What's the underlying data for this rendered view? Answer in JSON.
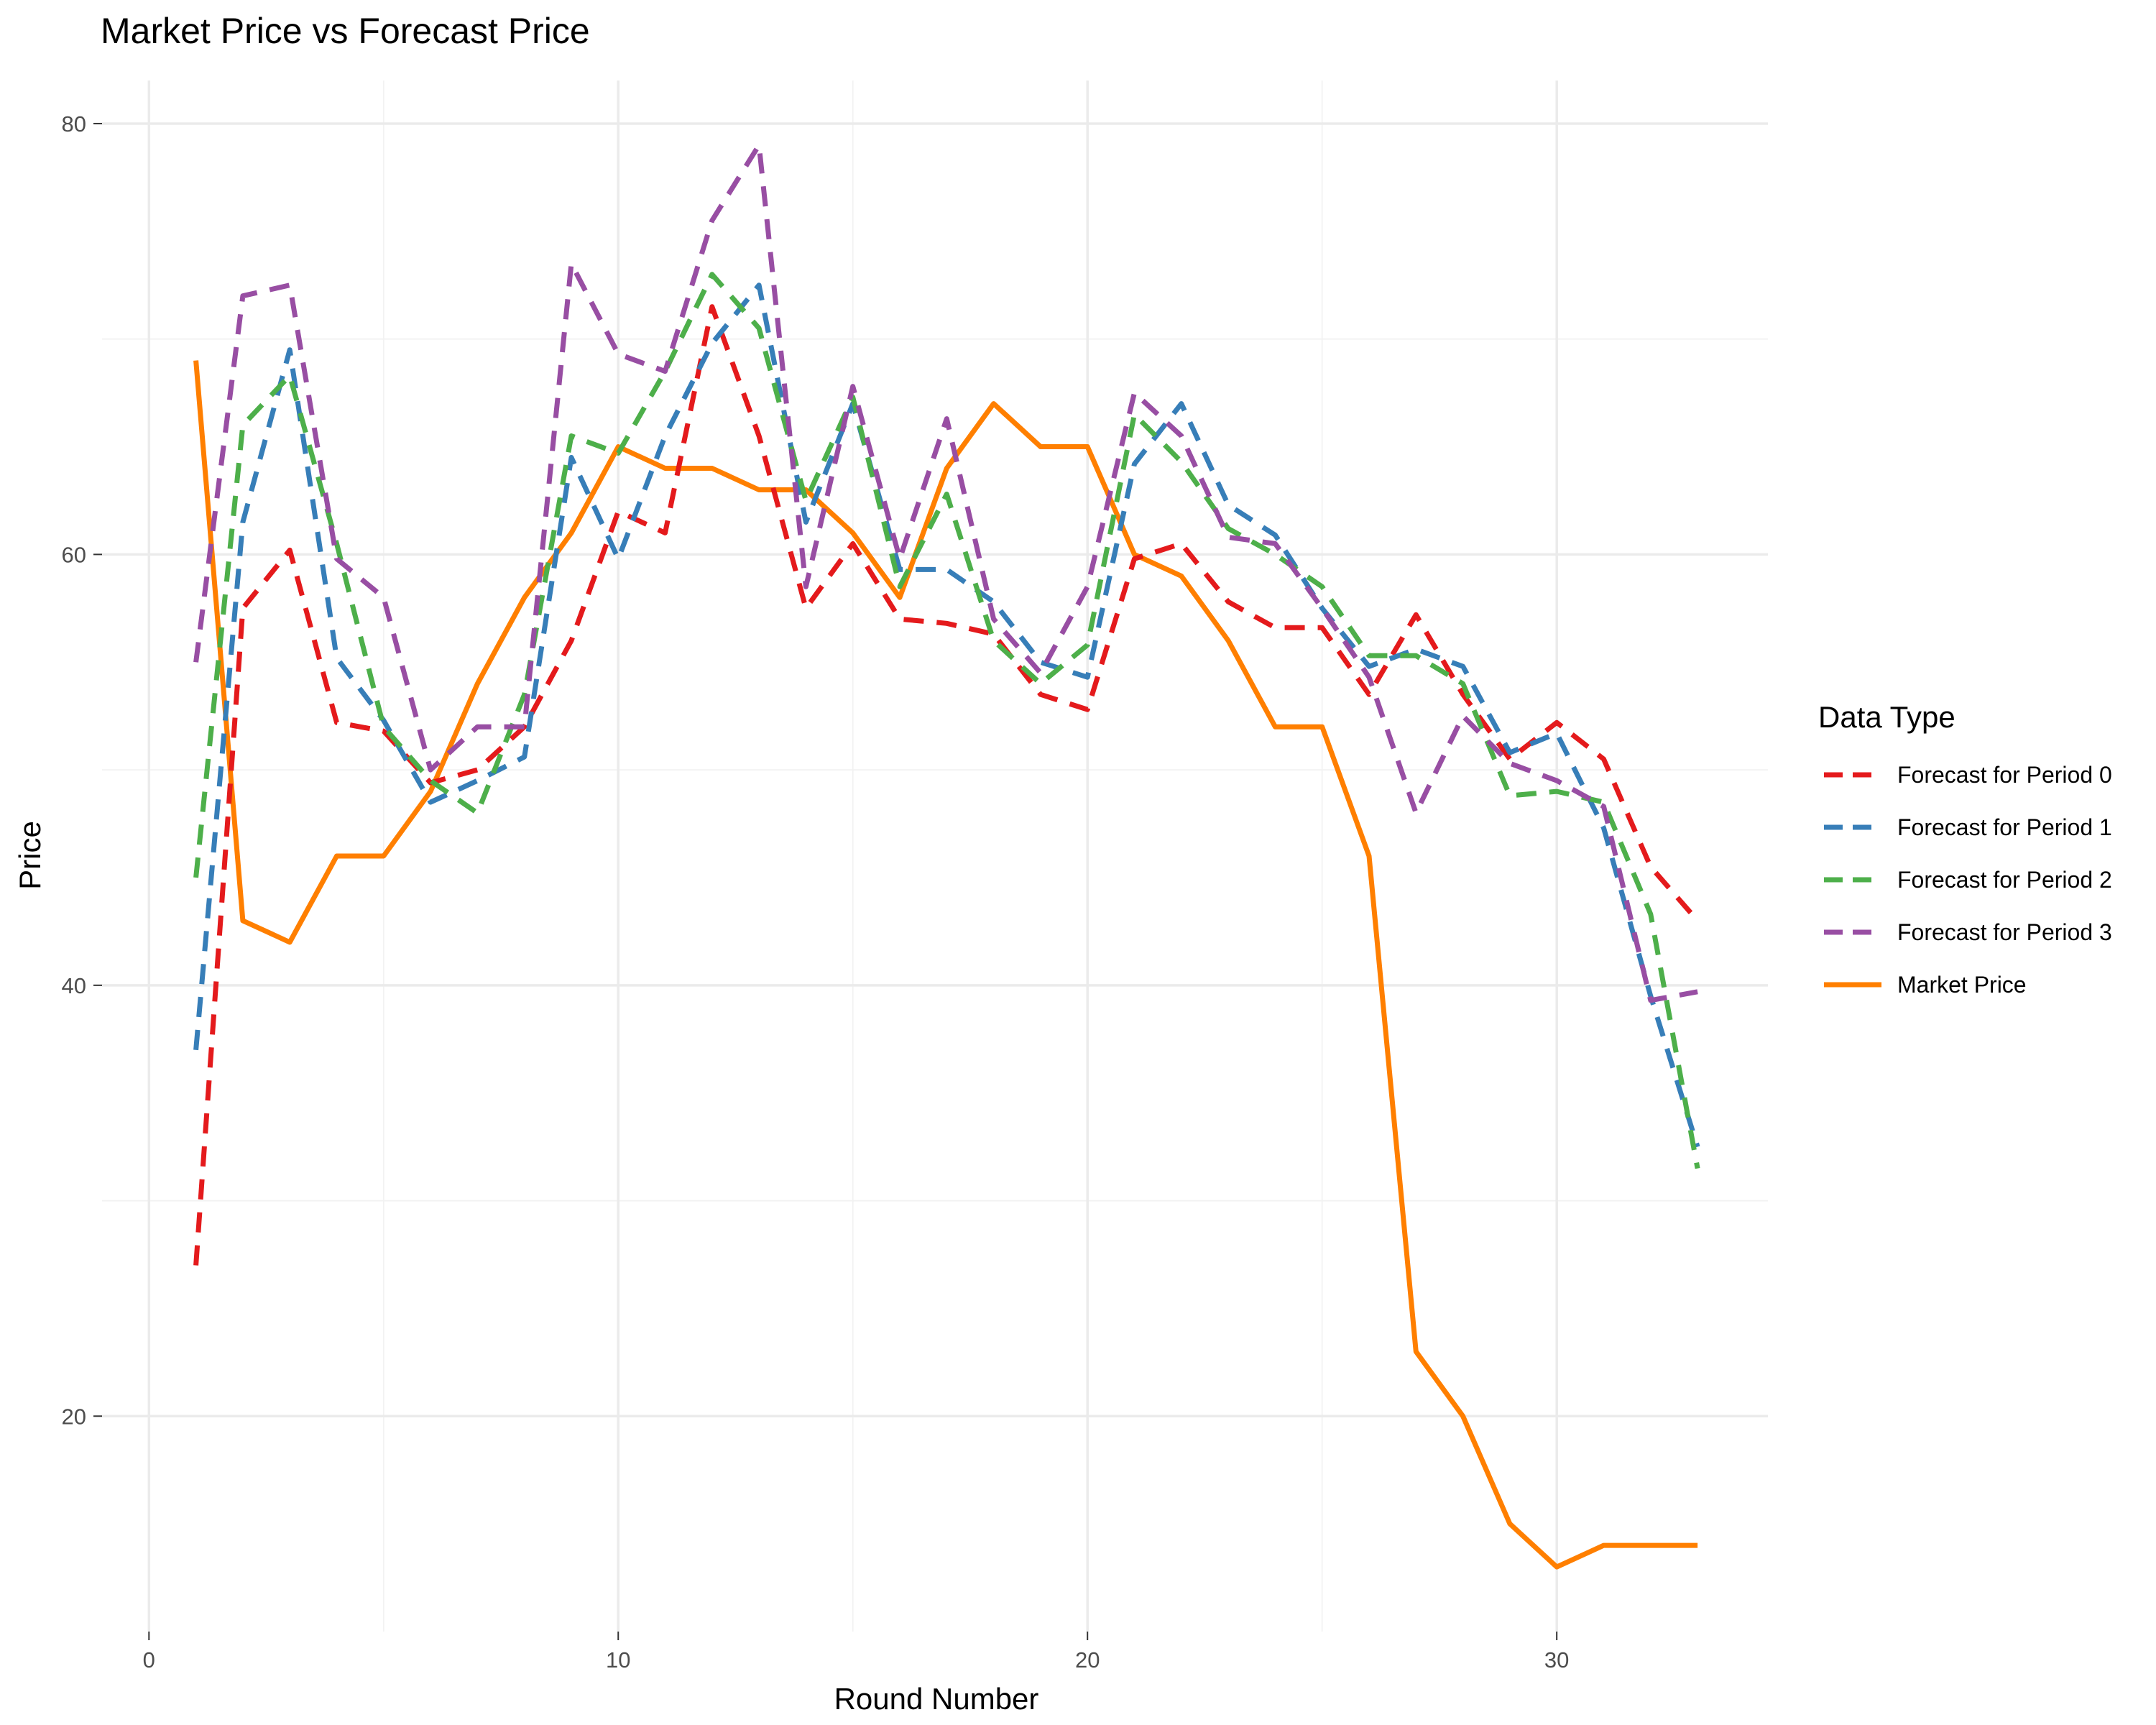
{
  "chart_data": {
    "type": "line",
    "title": "Market Price vs Forecast Price",
    "xlabel": "Round Number",
    "ylabel": "Price",
    "xlim": [
      -1,
      34.5
    ],
    "ylim": [
      10,
      82
    ],
    "x_ticks": [
      0,
      10,
      20,
      30
    ],
    "y_ticks": [
      20,
      40,
      60,
      80
    ],
    "x_minor": [
      5,
      15,
      25
    ],
    "y_minor": [
      30,
      50,
      70
    ],
    "grid": true,
    "legend": {
      "title": "Data Type",
      "position": "right"
    },
    "x": [
      1,
      2,
      3,
      4,
      5,
      6,
      7,
      8,
      9,
      10,
      11,
      12,
      13,
      14,
      15,
      16,
      17,
      18,
      19,
      20,
      21,
      22,
      23,
      24,
      25,
      26,
      27,
      28,
      29,
      30,
      31,
      32,
      33
    ],
    "series": [
      {
        "name": "Forecast for Period 0",
        "color": "#e41a1c",
        "dash": true,
        "values": [
          27,
          57.5,
          60.2,
          52.2,
          51.8,
          49.4,
          50,
          52,
          56,
          62,
          61,
          71.5,
          65.5,
          57.5,
          60.5,
          57,
          56.8,
          56.3,
          53.5,
          52.8,
          59.8,
          60.5,
          57.8,
          56.6,
          56.6,
          53.5,
          57.2,
          53.5,
          50.5,
          52.2,
          50.5,
          45.5,
          43
        ]
      },
      {
        "name": "Forecast for Period 1",
        "color": "#377eb8",
        "dash": true,
        "values": [
          37,
          61.5,
          69.5,
          55.2,
          52.3,
          48.5,
          49.5,
          50.6,
          64.5,
          59.8,
          65.5,
          69.8,
          72.5,
          61.5,
          67,
          59.3,
          59.3,
          57.8,
          55,
          54.3,
          64.2,
          67,
          62.3,
          60.9,
          57.5,
          54.8,
          55.6,
          54.8,
          50.8,
          51.7,
          47.3,
          39.5,
          32.5
        ]
      },
      {
        "name": "Forecast for Period 2",
        "color": "#4daf4a",
        "dash": true,
        "values": [
          45,
          66,
          68.3,
          60.5,
          52,
          49.5,
          48,
          53.5,
          65.5,
          64.7,
          68.5,
          73,
          70.5,
          62.5,
          67.3,
          58.5,
          62.8,
          56,
          54,
          55.8,
          66.5,
          64.3,
          61.2,
          60,
          58.5,
          55.3,
          55.3,
          54,
          48.8,
          49,
          48.5,
          43.3,
          31.5
        ]
      },
      {
        "name": "Forecast for Period 3",
        "color": "#984ea3",
        "dash": true,
        "values": [
          55,
          72,
          72.5,
          59.8,
          58,
          50,
          52,
          52,
          73.5,
          69.3,
          68.5,
          75.5,
          79,
          58.5,
          67.8,
          59.8,
          66.3,
          57,
          54.5,
          58.5,
          67.5,
          65.5,
          60.8,
          60.5,
          57.5,
          54.3,
          48,
          52.5,
          50.3,
          49.5,
          48.3,
          39.3,
          39.7
        ]
      },
      {
        "name": "Market Price",
        "color": "#ff7f00",
        "dash": false,
        "values": [
          69,
          43,
          42,
          46,
          46,
          49,
          54,
          58,
          61,
          65,
          64,
          64,
          63,
          63,
          61,
          58,
          64,
          67,
          65,
          65,
          60,
          59,
          56,
          52,
          52,
          46,
          23,
          20,
          15,
          13,
          14,
          14,
          14
        ]
      }
    ]
  }
}
